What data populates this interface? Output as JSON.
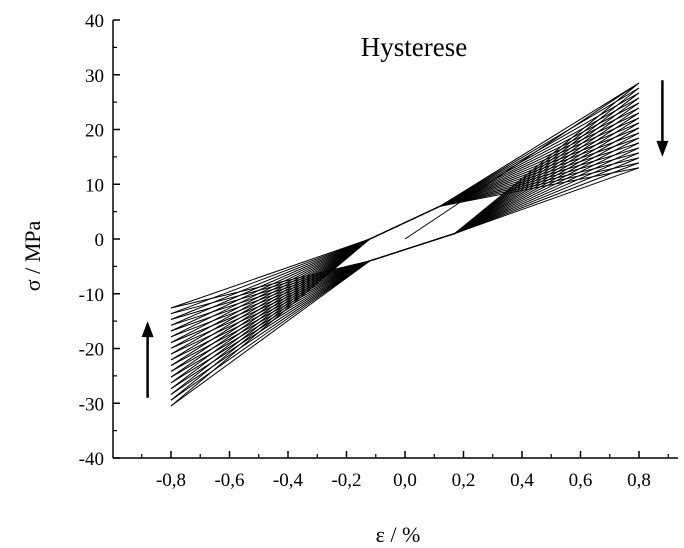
{
  "chart_data": {
    "type": "line",
    "title": "Hysterese",
    "xlabel": "ε / %",
    "ylabel": "σ / MPa",
    "xlim": [
      -0.95,
      0.95
    ],
    "ylim": [
      -40,
      40
    ],
    "x_ticks": [
      -0.8,
      -0.6,
      -0.4,
      -0.2,
      0.0,
      0.2,
      0.4,
      0.6,
      0.8
    ],
    "x_tick_labels": [
      "-0,8",
      "-0,6",
      "-0,4",
      "-0,2",
      "0,0",
      "0,2",
      "0,4",
      "0,6",
      "0,8"
    ],
    "y_ticks": [
      -40,
      -30,
      -20,
      -10,
      0,
      10,
      20,
      30,
      40
    ],
    "y_tick_labels": [
      "-40",
      "-30",
      "-20",
      "-10",
      "0",
      "10",
      "20",
      "30",
      "40"
    ],
    "grid": false,
    "loop_count": 18,
    "initial_loading": {
      "x": [
        0.0,
        0.8
      ],
      "y": [
        0.0,
        28.5
      ]
    },
    "first_loop": {
      "upper_branch": {
        "x": [
          0.8,
          0.12,
          -0.12,
          -0.8
        ],
        "y": [
          28.5,
          6.0,
          0.0,
          -12.6
        ]
      },
      "lower_branch": {
        "x": [
          -0.8,
          -0.12,
          0.17,
          0.8
        ],
        "y": [
          -12.6,
          -4.0,
          1.0,
          28.5
        ]
      }
    },
    "last_loop": {
      "upper_branch": {
        "x": [
          0.8,
          0.12,
          -0.12,
          -0.8
        ],
        "y": [
          13.0,
          6.0,
          0.0,
          -30.5
        ]
      },
      "lower_branch": {
        "x": [
          -0.8,
          -0.12,
          0.17,
          0.8
        ],
        "y": [
          -30.5,
          -4.0,
          1.0,
          13.0
        ]
      }
    },
    "arrows": [
      {
        "x": 0.88,
        "y_from": 29,
        "y_to": 15,
        "direction": "down"
      },
      {
        "x": -0.88,
        "y_from": -29,
        "y_to": -15,
        "direction": "up"
      }
    ]
  }
}
